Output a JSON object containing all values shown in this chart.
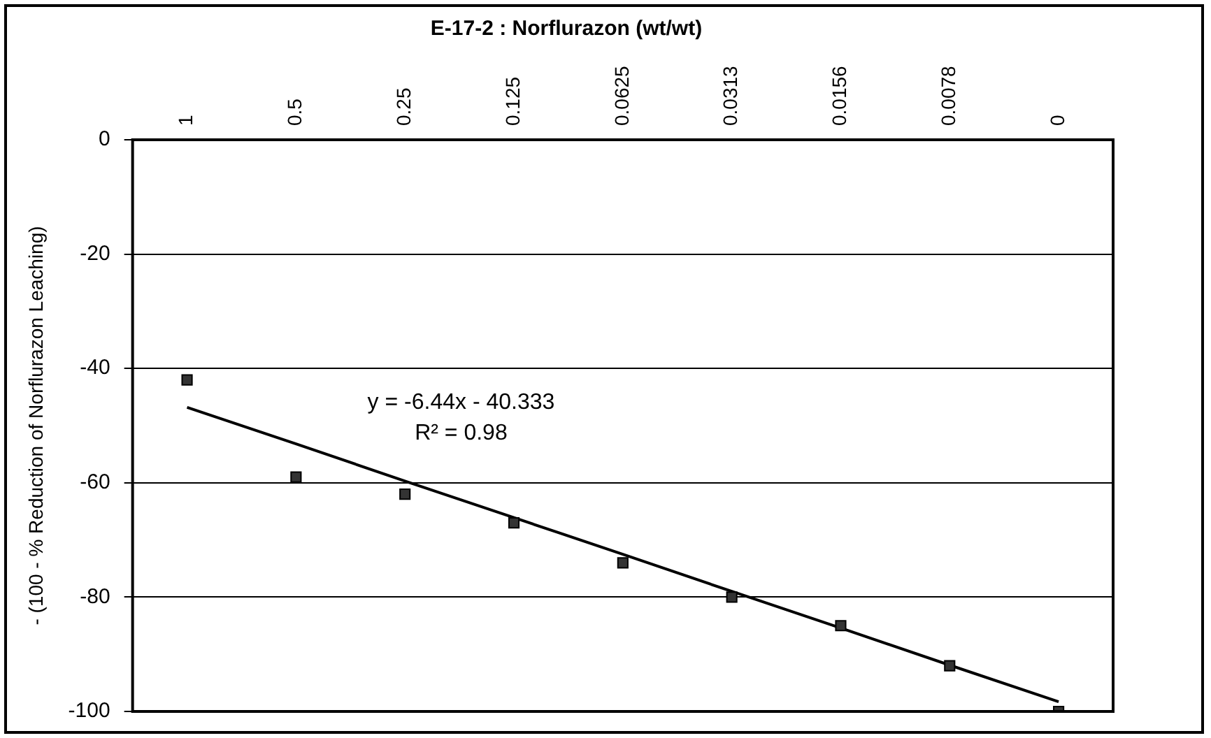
{
  "chart_data": {
    "type": "scatter",
    "title": "E-17-2 : Norflurazon (wt/wt)",
    "ylabel": "- (100 - % Reduction of Norflurazon Leaching)",
    "categories": [
      "1",
      "0.5",
      "0.25",
      "0.125",
      "0.0625",
      "0.0313",
      "0.0156",
      "0.0078",
      "0"
    ],
    "series": [
      {
        "color": "#333333",
        "marker": "square",
        "values": [
          -42,
          -59,
          -62,
          -67,
          -74,
          -80,
          -85,
          -92,
          -100
        ]
      },
      {
        "type": "line",
        "color": "#000000",
        "marker": "none",
        "line_style": "solid",
        "values": [
          -46.8,
          -53.2,
          -59.7,
          -66.1,
          -72.5,
          -79.0,
          -85.4,
          -91.9,
          -98.3
        ]
      }
    ],
    "ylim": [
      -100,
      0
    ],
    "yticks": [
      0,
      -20,
      -40,
      -60,
      -80,
      -100
    ],
    "grid": "y",
    "legend": false,
    "annotations": [
      "y = -6.44x - 40.333",
      "R² = 0.98"
    ]
  }
}
